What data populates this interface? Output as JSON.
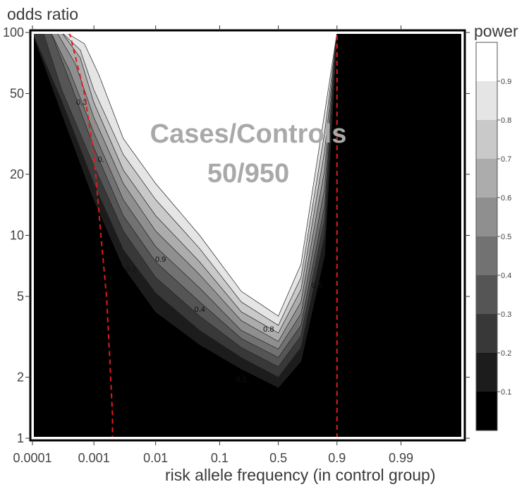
{
  "chart_data": {
    "type": "heatmap",
    "subtype": "filled-contour",
    "xlabel": "risk allele frequency (in control group)",
    "ylabel": "odds ratio",
    "x_scale": "logit",
    "y_scale": "log",
    "xlim": [
      0.0001,
      0.999
    ],
    "ylim": [
      1,
      100
    ],
    "x_ticks": [
      "0.0001",
      "0.001",
      "0.01",
      "0.1",
      "0.5",
      "0.9",
      "0.99"
    ],
    "x_tick_values": [
      0.0001,
      0.001,
      0.01,
      0.1,
      0.5,
      0.9,
      0.99
    ],
    "y_ticks": [
      "1",
      "2",
      "5",
      "10",
      "20",
      "50",
      "100"
    ],
    "y_tick_values": [
      1,
      2,
      5,
      10,
      20,
      50,
      100
    ],
    "annotation": [
      "Cases/Controls",
      "50/950"
    ],
    "colorbar": {
      "title": "power",
      "levels": [
        "0.1",
        "0.2",
        "0.3",
        "0.4",
        "0.5",
        "0.6",
        "0.7",
        "0.8",
        "0.9"
      ],
      "colors": [
        "#000000",
        "#1c1c1c",
        "#383838",
        "#555555",
        "#727272",
        "#8f8f8f",
        "#acacac",
        "#c9c9c9",
        "#e5e5e5",
        "#ffffff"
      ]
    },
    "contour_boundaries": [
      {
        "level": 0.1,
        "x": [
          0.0001,
          0.0003,
          0.001,
          0.003,
          0.01,
          0.05,
          0.2,
          0.5,
          0.7,
          0.85,
          0.9
        ],
        "y": [
          100,
          40,
          15,
          7,
          4.2,
          2.9,
          2.2,
          1.78,
          2.4,
          8,
          100
        ]
      },
      {
        "level": 0.2,
        "x": [
          0.0001,
          0.0003,
          0.001,
          0.003,
          0.01,
          0.05,
          0.2,
          0.5,
          0.7,
          0.85,
          0.9
        ],
        "y": [
          100,
          46,
          18,
          8.5,
          5.2,
          3.4,
          2.5,
          2.0,
          2.8,
          10,
          100
        ]
      },
      {
        "level": 0.3,
        "x": [
          0.00015,
          0.0003,
          0.001,
          0.003,
          0.01,
          0.05,
          0.2,
          0.5,
          0.7,
          0.85,
          0.9
        ],
        "y": [
          100,
          52,
          22,
          10.5,
          6.2,
          4.0,
          2.8,
          2.25,
          3.2,
          12,
          100
        ]
      },
      {
        "level": 0.4,
        "x": [
          0.0002,
          0.0004,
          0.001,
          0.003,
          0.01,
          0.05,
          0.2,
          0.5,
          0.7,
          0.85,
          0.9
        ],
        "y": [
          100,
          58,
          27,
          12.5,
          7.4,
          4.7,
          3.1,
          2.5,
          3.6,
          14,
          100
        ]
      },
      {
        "level": 0.5,
        "x": [
          0.0002,
          0.0004,
          0.001,
          0.003,
          0.01,
          0.05,
          0.2,
          0.5,
          0.7,
          0.85,
          0.9
        ],
        "y": [
          100,
          65,
          32,
          15,
          8.8,
          5.5,
          3.4,
          2.75,
          4.1,
          17,
          100
        ]
      },
      {
        "level": 0.6,
        "x": [
          0.00025,
          0.0005,
          0.001,
          0.003,
          0.01,
          0.05,
          0.2,
          0.5,
          0.7,
          0.85,
          0.9
        ],
        "y": [
          100,
          70,
          38,
          18,
          10.5,
          6.4,
          3.8,
          3.0,
          4.7,
          21,
          100
        ]
      },
      {
        "level": 0.7,
        "x": [
          0.0003,
          0.0006,
          0.001,
          0.003,
          0.01,
          0.05,
          0.2,
          0.5,
          0.7,
          0.85,
          0.9
        ],
        "y": [
          100,
          75,
          45,
          21,
          12.5,
          7.4,
          4.2,
          3.3,
          5.4,
          26,
          100
        ]
      },
      {
        "level": 0.8,
        "x": [
          0.0003,
          0.0006,
          0.001,
          0.003,
          0.01,
          0.05,
          0.2,
          0.5,
          0.7,
          0.85,
          0.9
        ],
        "y": [
          100,
          82,
          52,
          25,
          15,
          8.6,
          4.7,
          3.6,
          6.2,
          32,
          100
        ]
      },
      {
        "level": 0.9,
        "x": [
          0.00035,
          0.0007,
          0.0012,
          0.003,
          0.01,
          0.05,
          0.2,
          0.5,
          0.7,
          0.85,
          0.9
        ],
        "y": [
          100,
          88,
          62,
          30,
          18,
          10,
          5.3,
          4.0,
          7.2,
          40,
          100
        ]
      }
    ],
    "contour_labels": [
      {
        "text": "0.3",
        "x": 0.00063,
        "y": 44
      },
      {
        "text": "0.",
        "x": 0.0013,
        "y": 23
      },
      {
        "text": "0.2",
        "x": 0.004,
        "y": 6.6
      },
      {
        "text": "0.9",
        "x": 0.012,
        "y": 7.4
      },
      {
        "text": "0.4",
        "x": 0.05,
        "y": 4.2
      },
      {
        "text": "0.8",
        "x": 0.41,
        "y": 3.35
      },
      {
        "text": "0.5",
        "x": 0.81,
        "y": 5.5
      },
      {
        "text": "0.6",
        "x": 0.897,
        "y": 32
      },
      {
        "text": "0.1",
        "x": 0.2,
        "y": 1.9
      }
    ],
    "reference_lines": [
      {
        "style": "dashed",
        "color": "#e01b1b",
        "x": [
          0.0004,
          0.0007,
          0.001,
          0.0013,
          0.0016,
          0.0018,
          0.002,
          0.002
        ],
        "y": [
          100,
          50,
          25,
          10,
          5,
          2.5,
          1.3,
          1
        ]
      },
      {
        "style": "dashed",
        "color": "#e01b1b",
        "x": [
          0.9,
          0.9
        ],
        "y": [
          1,
          100
        ]
      }
    ]
  }
}
